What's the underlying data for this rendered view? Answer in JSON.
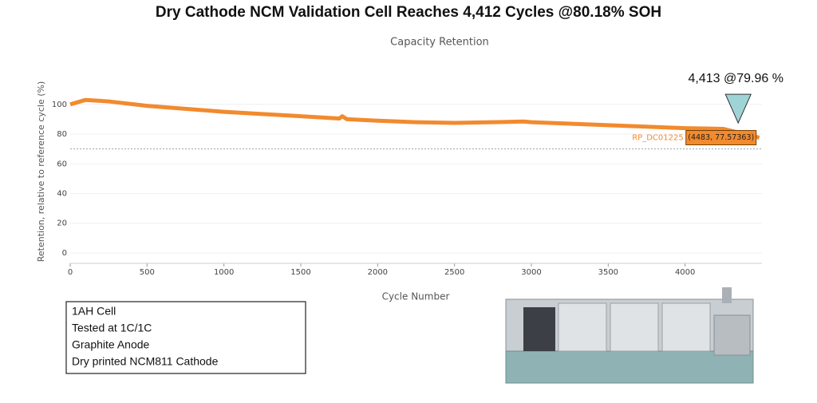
{
  "chart_data": {
    "type": "line",
    "title": "Dry Cathode NCM Validation Cell Reaches 4,412 Cycles @80.18% SOH",
    "subtitle": "Capacity Retention",
    "x_label": "Cycle Number",
    "y_label": "Retention, relative to reference cycle (%)",
    "xlim": [
      0,
      4500
    ],
    "xticks": [
      0,
      500,
      1000,
      1500,
      2000,
      2500,
      3000,
      3500,
      4000
    ],
    "ylim": [
      -7,
      116
    ],
    "yticks": [
      0,
      20,
      40,
      60,
      80,
      100
    ],
    "grid": true,
    "reference_line": 70,
    "series": [
      {
        "name": "RP_DC01225",
        "color": "#f28a2e",
        "x": [
          0,
          100,
          250,
          500,
          750,
          1000,
          1250,
          1500,
          1750,
          1770,
          1800,
          2000,
          2250,
          2500,
          2750,
          2950,
          3000,
          3250,
          3500,
          3750,
          4000,
          4250,
          4483
        ],
        "values": [
          100,
          103,
          102,
          99,
          97,
          95,
          93.5,
          92,
          90.5,
          92,
          90,
          89,
          88,
          87.5,
          88,
          88.5,
          88,
          87,
          86,
          85,
          84,
          83.5,
          77.6
        ]
      }
    ],
    "tooltip": "(4483, 77.57363)",
    "marker": {
      "x": 4413,
      "y": 79.96,
      "label": "4,413 @79.96 %"
    }
  },
  "info_box": [
    "1AH Cell",
    "Tested at 1C/1C",
    "Graphite Anode",
    "Dry printed NCM811 Cathode"
  ]
}
